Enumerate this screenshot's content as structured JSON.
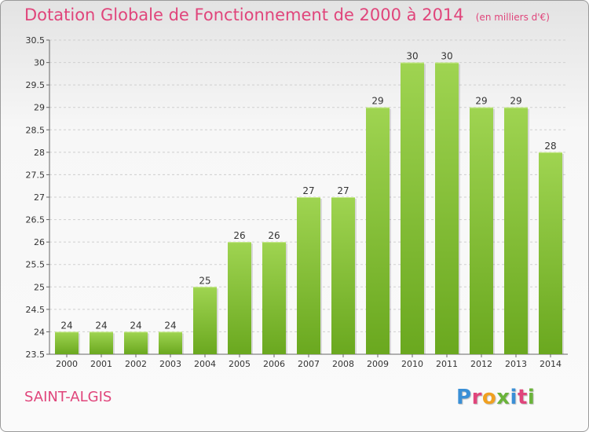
{
  "header": {
    "title": "Dotation Globale de Fonctionnement de 2000 à 2014",
    "unit": "(en milliers d'€)"
  },
  "footer": {
    "commune": "SAINT-ALGIS",
    "logo": {
      "text": "Proxiti",
      "letter_colors": [
        "#3a8fd6",
        "#e0457b",
        "#f0a020",
        "#6ab33a",
        "#3a8fd6",
        "#e0457b",
        "#6ab33a"
      ]
    }
  },
  "colors": {
    "bar_top": "#9fd451",
    "bar_bottom": "#6aa81f",
    "grid": "#cfcfcf",
    "accent": "#e0457b"
  },
  "chart_data": {
    "type": "bar",
    "categories": [
      "2000",
      "2001",
      "2002",
      "2003",
      "2004",
      "2005",
      "2006",
      "2007",
      "2008",
      "2009",
      "2010",
      "2011",
      "2012",
      "2013",
      "2014"
    ],
    "values": [
      24,
      24,
      24,
      24,
      25,
      26,
      26,
      27,
      27,
      29,
      30,
      30,
      29,
      29,
      28
    ],
    "labels": [
      "24",
      "24",
      "24",
      "24",
      "25",
      "26",
      "26",
      "27",
      "27",
      "29",
      "30",
      "30",
      "29",
      "29",
      "28"
    ],
    "ylim": [
      23.5,
      30.5
    ],
    "yticks": [
      23.5,
      24,
      24.5,
      25,
      25.5,
      26,
      26.5,
      27,
      27.5,
      28,
      28.5,
      29,
      29.5,
      30,
      30.5
    ],
    "ytick_labels": [
      "23.5",
      "24",
      "24.5",
      "25",
      "25.5",
      "26",
      "26.5",
      "27",
      "27.5",
      "28",
      "28.5",
      "29",
      "29.5",
      "30",
      "30.5"
    ],
    "grid": true,
    "title": "Dotation Globale de Fonctionnement de 2000 à 2014",
    "xlabel": "",
    "ylabel": ""
  }
}
